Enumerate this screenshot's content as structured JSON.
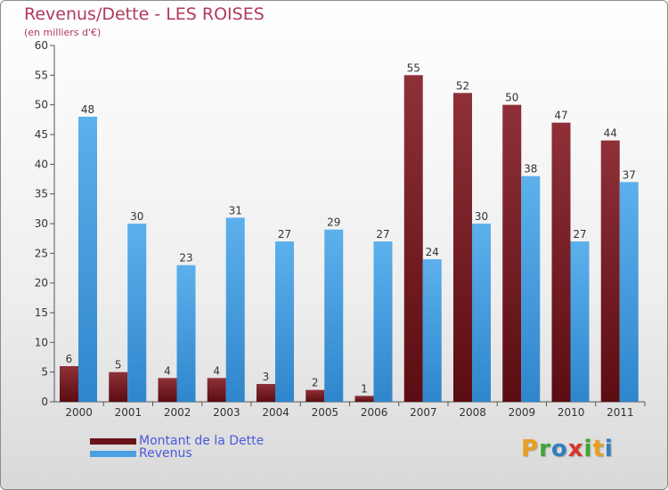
{
  "chart_data": {
    "type": "bar",
    "title": "Revenus/Dette - LES ROISES",
    "subtitle": "(en milliers d'€)",
    "categories": [
      "2000",
      "2001",
      "2002",
      "2003",
      "2004",
      "2005",
      "2006",
      "2007",
      "2008",
      "2009",
      "2010",
      "2011"
    ],
    "series": [
      {
        "name": "Montant de la Dette",
        "values": [
          6,
          5,
          4,
          4,
          3,
          2,
          1,
          55,
          52,
          50,
          47,
          44
        ],
        "color": "#7a1f25"
      },
      {
        "name": "Revenus",
        "values": [
          48,
          30,
          23,
          31,
          27,
          29,
          27,
          24,
          30,
          38,
          27,
          37
        ],
        "color": "#4aa0e0"
      }
    ],
    "ylim": [
      0,
      60
    ],
    "yticks": [
      0,
      5,
      10,
      15,
      20,
      25,
      30,
      35,
      40,
      45,
      50,
      55,
      60
    ],
    "grid": false,
    "legend_position": "bottom-left"
  },
  "logo": {
    "letters": [
      "P",
      "r",
      "o",
      "x",
      "i",
      "t",
      "i"
    ],
    "colors": [
      "#e8a01e",
      "#3fa535",
      "#2f7fc1",
      "#d9342b",
      "#3fa535",
      "#e8a01e",
      "#2f7fc1"
    ]
  }
}
